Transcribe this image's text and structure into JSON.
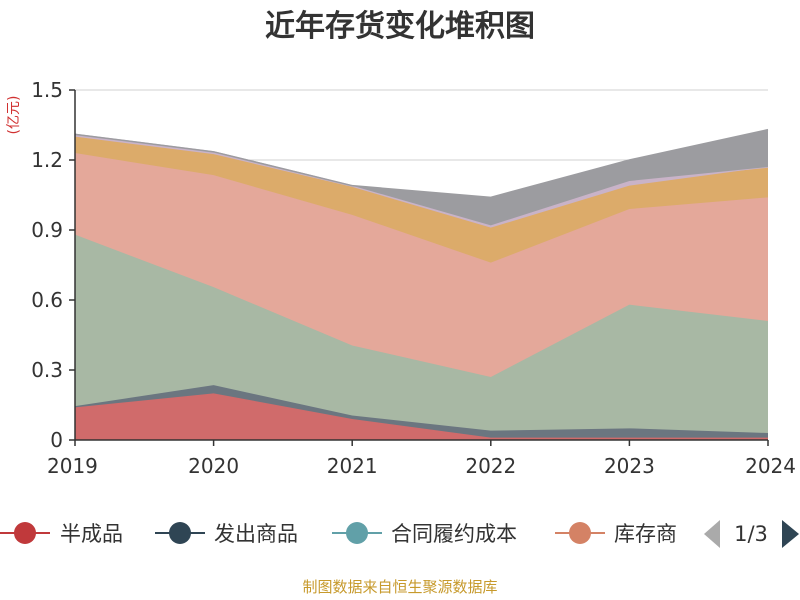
{
  "chart_data": {
    "type": "area",
    "stacked": true,
    "title": "近年存货变化堆积图",
    "unit": "(亿元)",
    "x": [
      "2019",
      "2020",
      "2021",
      "2022",
      "2023",
      "2024"
    ],
    "ylim": [
      0,
      1.5
    ],
    "yticks": [
      "0",
      "0.3",
      "0.6",
      "0.9",
      "1.2",
      "1.5"
    ],
    "grid": true,
    "legend_position": "bottom",
    "series": [
      {
        "name": "半成品",
        "color": "#d06b6b",
        "values": [
          0.14,
          0.2,
          0.09,
          0.01,
          0.01,
          0.01
        ]
      },
      {
        "name": "发出商品",
        "color": "#6b7680",
        "values": [
          0.005,
          0.035,
          0.015,
          0.03,
          0.04,
          0.02
        ]
      },
      {
        "name": "合同履约成本",
        "color": "#a8b8a4",
        "values": [
          0.735,
          0.42,
          0.3,
          0.23,
          0.53,
          0.48
        ]
      },
      {
        "name": "库存商品",
        "color": "#e4a89a",
        "values": [
          0.35,
          0.48,
          0.56,
          0.49,
          0.41,
          0.53
        ]
      },
      {
        "name": "",
        "color": "#dcab6a",
        "values": [
          0.07,
          0.09,
          0.12,
          0.15,
          0.1,
          0.13
        ]
      },
      {
        "name": "",
        "color": "#c9b3c8",
        "values": [
          0.01,
          0.01,
          0.005,
          0.01,
          0.02,
          0.0
        ]
      },
      {
        "name": "",
        "color": "#9c9ca0",
        "values": [
          0.0,
          0.0,
          0.0,
          0.12,
          0.09,
          0.16
        ]
      }
    ]
  },
  "legend": {
    "items": [
      {
        "name": "半成品",
        "color": "#c0393b"
      },
      {
        "name": "发出商品",
        "color": "#2f4554"
      },
      {
        "name": "合同履约成本",
        "color": "#61a0a8"
      },
      {
        "name": "库存商",
        "color": "#d48265"
      }
    ],
    "pager": "1/3"
  },
  "source": "制图数据来自恒生聚源数据库"
}
